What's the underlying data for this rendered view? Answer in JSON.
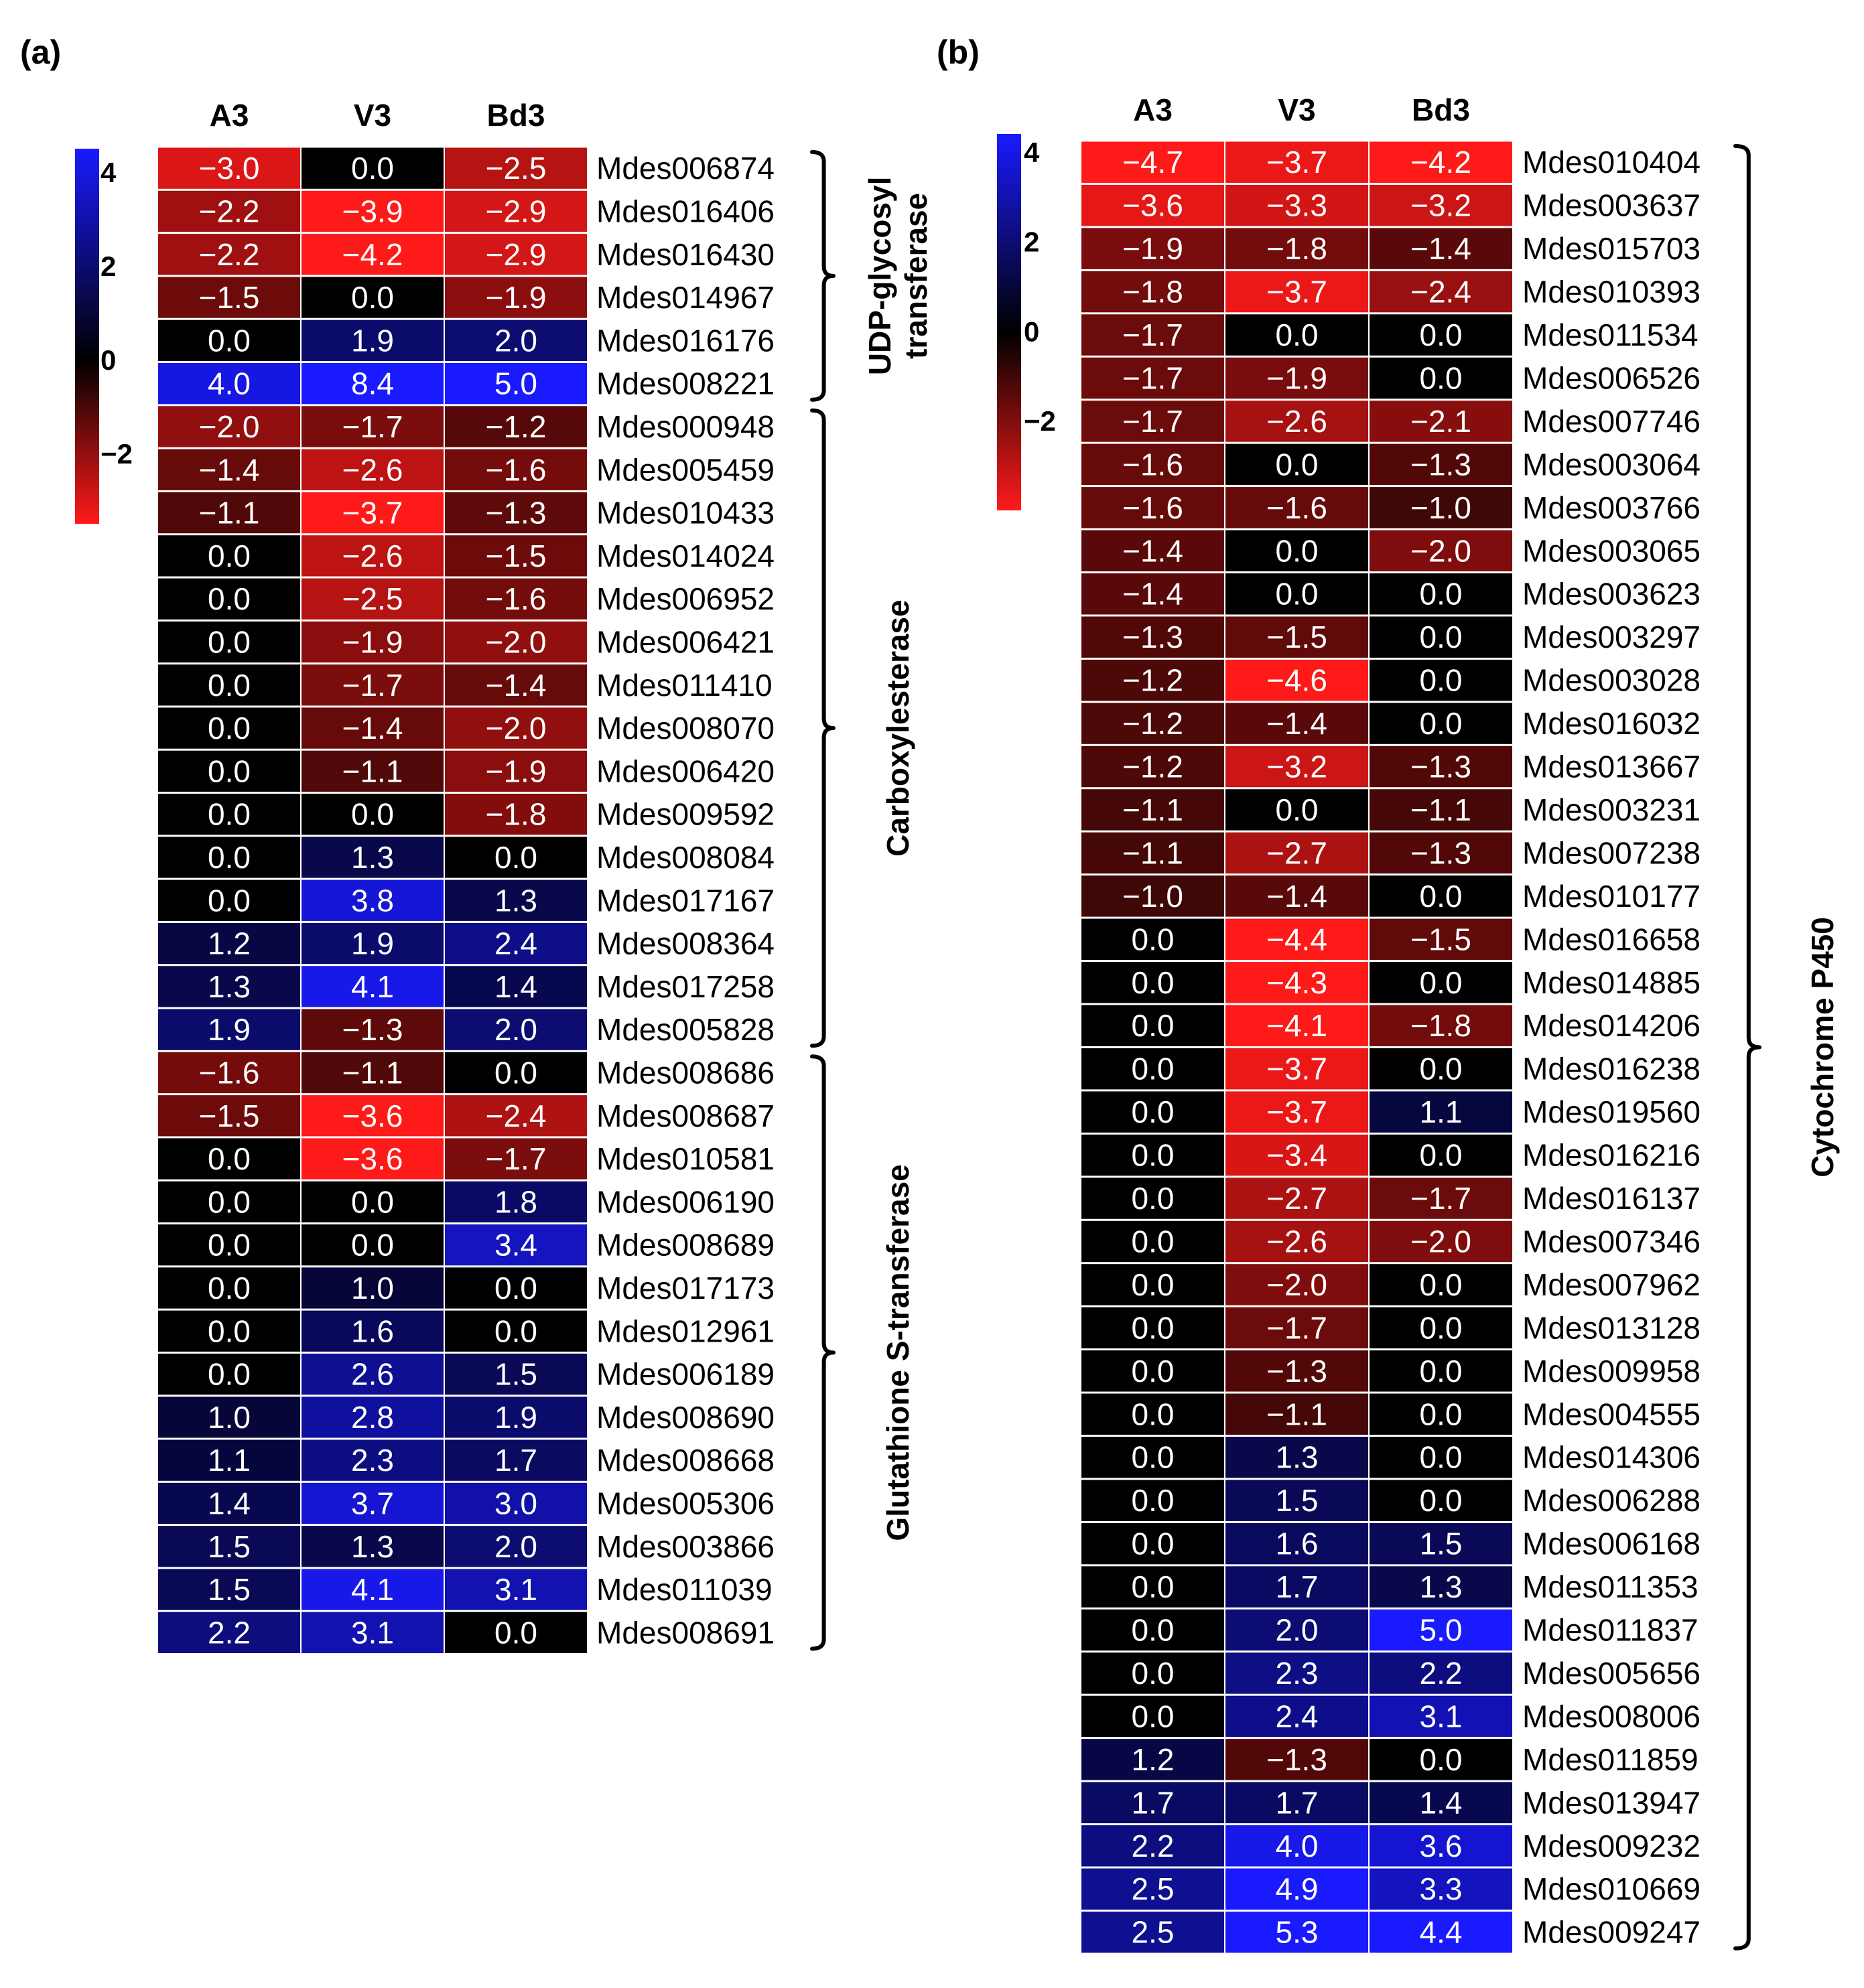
{
  "chart_data": [
    {
      "type": "heatmap",
      "panel_label": "(a)",
      "columns": [
        "A3",
        "V3",
        "Bd3"
      ],
      "colorbar": {
        "ticks": [
          "4",
          "2",
          "0",
          "−2"
        ],
        "tick_values": [
          4,
          2,
          0,
          -2
        ],
        "range": [
          -3.5,
          4.5
        ],
        "colors": {
          "low": "#ff1a1a",
          "mid": "#000000",
          "high": "#1a1aff"
        }
      },
      "groups": [
        {
          "label_lines": [
            "UDP-glycosyl",
            "transferase"
          ],
          "start": 0,
          "end": 5
        },
        {
          "label_lines": [
            "Carboxylesterase"
          ],
          "start": 6,
          "end": 20
        },
        {
          "label_lines": [
            "Glutathione S-transferase"
          ],
          "start": 21,
          "end": 34
        }
      ],
      "rows": [
        {
          "gene": "Mdes006874",
          "values": [
            "−3.0",
            "0.0",
            "−2.5"
          ]
        },
        {
          "gene": "Mdes016406",
          "values": [
            "−2.2",
            "−3.9",
            "−2.9"
          ]
        },
        {
          "gene": "Mdes016430",
          "values": [
            "−2.2",
            "−4.2",
            "−2.9"
          ]
        },
        {
          "gene": "Mdes014967",
          "values": [
            "−1.5",
            "0.0",
            "−1.9"
          ]
        },
        {
          "gene": "Mdes016176",
          "values": [
            "0.0",
            "1.9",
            "2.0"
          ]
        },
        {
          "gene": "Mdes008221",
          "values": [
            "4.0",
            "8.4",
            "5.0"
          ]
        },
        {
          "gene": "Mdes000948",
          "values": [
            "−2.0",
            "−1.7",
            "−1.2"
          ]
        },
        {
          "gene": "Mdes005459",
          "values": [
            "−1.4",
            "−2.6",
            "−1.6"
          ]
        },
        {
          "gene": "Mdes010433",
          "values": [
            "−1.1",
            "−3.7",
            "−1.3"
          ]
        },
        {
          "gene": "Mdes014024",
          "values": [
            "0.0",
            "−2.6",
            "−1.5"
          ]
        },
        {
          "gene": "Mdes006952",
          "values": [
            "0.0",
            "−2.5",
            "−1.6"
          ]
        },
        {
          "gene": "Mdes006421",
          "values": [
            "0.0",
            "−1.9",
            "−2.0"
          ]
        },
        {
          "gene": "Mdes011410",
          "values": [
            "0.0",
            "−1.7",
            "−1.4"
          ]
        },
        {
          "gene": "Mdes008070",
          "values": [
            "0.0",
            "−1.4",
            "−2.0"
          ]
        },
        {
          "gene": "Mdes006420",
          "values": [
            "0.0",
            "−1.1",
            "−1.9"
          ]
        },
        {
          "gene": "Mdes009592",
          "values": [
            "0.0",
            "0.0",
            "−1.8"
          ]
        },
        {
          "gene": "Mdes008084",
          "values": [
            "0.0",
            "1.3",
            "0.0"
          ]
        },
        {
          "gene": "Mdes017167",
          "values": [
            "0.0",
            "3.8",
            "1.3"
          ]
        },
        {
          "gene": "Mdes008364",
          "values": [
            "1.2",
            "1.9",
            "2.4"
          ]
        },
        {
          "gene": "Mdes017258",
          "values": [
            "1.3",
            "4.1",
            "1.4"
          ]
        },
        {
          "gene": "Mdes005828",
          "values": [
            "1.9",
            "−1.3",
            "2.0"
          ]
        },
        {
          "gene": "Mdes008686",
          "values": [
            "−1.6",
            "−1.1",
            "0.0"
          ]
        },
        {
          "gene": "Mdes008687",
          "values": [
            "−1.5",
            "−3.6",
            "−2.4"
          ]
        },
        {
          "gene": "Mdes010581",
          "values": [
            "0.0",
            "−3.6",
            "−1.7"
          ]
        },
        {
          "gene": "Mdes006190",
          "values": [
            "0.0",
            "0.0",
            "1.8"
          ]
        },
        {
          "gene": "Mdes008689",
          "values": [
            "0.0",
            "0.0",
            "3.4"
          ]
        },
        {
          "gene": "Mdes017173",
          "values": [
            "0.0",
            "1.0",
            "0.0"
          ]
        },
        {
          "gene": "Mdes012961",
          "values": [
            "0.0",
            "1.6",
            "0.0"
          ]
        },
        {
          "gene": "Mdes006189",
          "values": [
            "0.0",
            "2.6",
            "1.5"
          ]
        },
        {
          "gene": "Mdes008690",
          "values": [
            "1.0",
            "2.8",
            "1.9"
          ]
        },
        {
          "gene": "Mdes008668",
          "values": [
            "1.1",
            "2.3",
            "1.7"
          ]
        },
        {
          "gene": "Mdes005306",
          "values": [
            "1.4",
            "3.7",
            "3.0"
          ]
        },
        {
          "gene": "Mdes003866",
          "values": [
            "1.5",
            "1.3",
            "2.0"
          ]
        },
        {
          "gene": "Mdes011039",
          "values": [
            "1.5",
            "4.1",
            "3.1"
          ]
        },
        {
          "gene": "Mdes008691",
          "values": [
            "2.2",
            "3.1",
            "0.0"
          ]
        }
      ]
    },
    {
      "type": "heatmap",
      "panel_label": "(b)",
      "columns": [
        "A3",
        "V3",
        "Bd3"
      ],
      "colorbar": {
        "ticks": [
          "4",
          "2",
          "0",
          "−2"
        ],
        "tick_values": [
          4,
          2,
          0,
          -2
        ],
        "range": [
          -4,
          4.4
        ],
        "colors": {
          "low": "#ff1a1a",
          "mid": "#000000",
          "high": "#1a1aff"
        }
      },
      "groups": [
        {
          "label_lines": [
            "Cytochrome P450"
          ],
          "start": 0,
          "end": 41
        }
      ],
      "rows": [
        {
          "gene": "Mdes010404",
          "values": [
            "−4.7",
            "−3.7",
            "−4.2"
          ]
        },
        {
          "gene": "Mdes003637",
          "values": [
            "−3.6",
            "−3.3",
            "−3.2"
          ]
        },
        {
          "gene": "Mdes015703",
          "values": [
            "−1.9",
            "−1.8",
            "−1.4"
          ]
        },
        {
          "gene": "Mdes010393",
          "values": [
            "−1.8",
            "−3.7",
            "−2.4"
          ]
        },
        {
          "gene": "Mdes011534",
          "values": [
            "−1.7",
            "0.0",
            "0.0"
          ]
        },
        {
          "gene": "Mdes006526",
          "values": [
            "−1.7",
            "−1.9",
            "0.0"
          ]
        },
        {
          "gene": "Mdes007746",
          "values": [
            "−1.7",
            "−2.6",
            "−2.1"
          ]
        },
        {
          "gene": "Mdes003064",
          "values": [
            "−1.6",
            "0.0",
            "−1.3"
          ]
        },
        {
          "gene": "Mdes003766",
          "values": [
            "−1.6",
            "−1.6",
            "−1.0"
          ]
        },
        {
          "gene": "Mdes003065",
          "values": [
            "−1.4",
            "0.0",
            "−2.0"
          ]
        },
        {
          "gene": "Mdes003623",
          "values": [
            "−1.4",
            "0.0",
            "0.0"
          ]
        },
        {
          "gene": "Mdes003297",
          "values": [
            "−1.3",
            "−1.5",
            "0.0"
          ]
        },
        {
          "gene": "Mdes003028",
          "values": [
            "−1.2",
            "−4.6",
            "0.0"
          ]
        },
        {
          "gene": "Mdes016032",
          "values": [
            "−1.2",
            "−1.4",
            "0.0"
          ]
        },
        {
          "gene": "Mdes013667",
          "values": [
            "−1.2",
            "−3.2",
            "−1.3"
          ]
        },
        {
          "gene": "Mdes003231",
          "values": [
            "−1.1",
            "0.0",
            "−1.1"
          ]
        },
        {
          "gene": "Mdes007238",
          "values": [
            "−1.1",
            "−2.7",
            "−1.3"
          ]
        },
        {
          "gene": "Mdes010177",
          "values": [
            "−1.0",
            "−1.4",
            "0.0"
          ]
        },
        {
          "gene": "Mdes016658",
          "values": [
            "0.0",
            "−4.4",
            "−1.5"
          ]
        },
        {
          "gene": "Mdes014885",
          "values": [
            "0.0",
            "−4.3",
            "0.0"
          ]
        },
        {
          "gene": "Mdes014206",
          "values": [
            "0.0",
            "−4.1",
            "−1.8"
          ]
        },
        {
          "gene": "Mdes016238",
          "values": [
            "0.0",
            "−3.7",
            "0.0"
          ]
        },
        {
          "gene": "Mdes019560",
          "values": [
            "0.0",
            "−3.7",
            "1.1"
          ]
        },
        {
          "gene": "Mdes016216",
          "values": [
            "0.0",
            "−3.4",
            "0.0"
          ]
        },
        {
          "gene": "Mdes016137",
          "values": [
            "0.0",
            "−2.7",
            "−1.7"
          ]
        },
        {
          "gene": "Mdes007346",
          "values": [
            "0.0",
            "−2.6",
            "−2.0"
          ]
        },
        {
          "gene": "Mdes007962",
          "values": [
            "0.0",
            "−2.0",
            "0.0"
          ]
        },
        {
          "gene": "Mdes013128",
          "values": [
            "0.0",
            "−1.7",
            "0.0"
          ]
        },
        {
          "gene": "Mdes009958",
          "values": [
            "0.0",
            "−1.3",
            "0.0"
          ]
        },
        {
          "gene": "Mdes004555",
          "values": [
            "0.0",
            "−1.1",
            "0.0"
          ]
        },
        {
          "gene": "Mdes014306",
          "values": [
            "0.0",
            "1.3",
            "0.0"
          ]
        },
        {
          "gene": "Mdes006288",
          "values": [
            "0.0",
            "1.5",
            "0.0"
          ]
        },
        {
          "gene": "Mdes006168",
          "values": [
            "0.0",
            "1.6",
            "1.5"
          ]
        },
        {
          "gene": "Mdes011353",
          "values": [
            "0.0",
            "1.7",
            "1.3"
          ]
        },
        {
          "gene": "Mdes011837",
          "values": [
            "0.0",
            "2.0",
            "5.0"
          ]
        },
        {
          "gene": "Mdes005656",
          "values": [
            "0.0",
            "2.3",
            "2.2"
          ]
        },
        {
          "gene": "Mdes008006",
          "values": [
            "0.0",
            "2.4",
            "3.1"
          ]
        },
        {
          "gene": "Mdes011859",
          "values": [
            "1.2",
            "−1.3",
            "0.0"
          ]
        },
        {
          "gene": "Mdes013947",
          "values": [
            "1.7",
            "1.7",
            "1.4"
          ]
        },
        {
          "gene": "Mdes009232",
          "values": [
            "2.2",
            "4.0",
            "3.6"
          ]
        },
        {
          "gene": "Mdes010669",
          "values": [
            "2.5",
            "4.9",
            "3.3"
          ]
        },
        {
          "gene": "Mdes009247",
          "values": [
            "2.5",
            "5.3",
            "4.4"
          ]
        }
      ]
    }
  ]
}
